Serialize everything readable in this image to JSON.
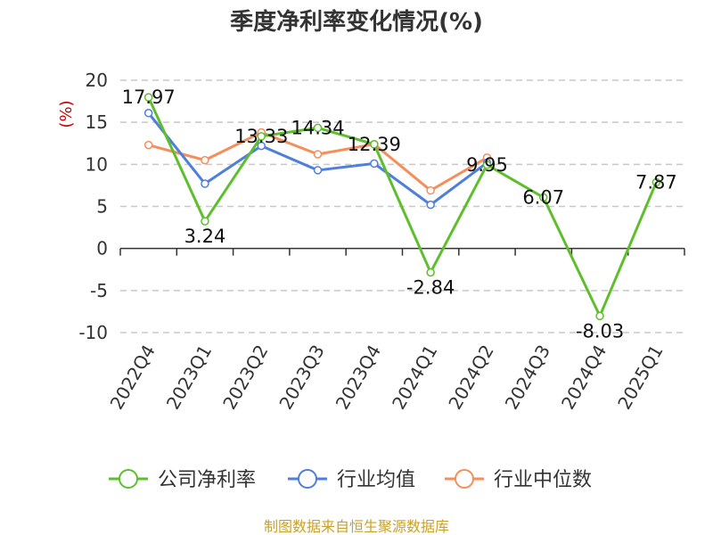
{
  "colors": {
    "company": "#5dbf2c",
    "industry_avg": "#4e7fdc",
    "industry_median": "#f58e5a",
    "axis_label": "#cc0000",
    "source": "#c9a227",
    "grid": "#c8c8c8",
    "axis": "#333333"
  },
  "chart_data": {
    "type": "line",
    "title": "季度净利率变化情况(%)",
    "ylabel": "(%)",
    "xlabel": "",
    "ylim": [
      -10,
      20
    ],
    "yticks": [
      -10,
      -5,
      0,
      5,
      10,
      15,
      20
    ],
    "grid": true,
    "legend_position": "bottom",
    "categories": [
      "2022Q4",
      "2023Q1",
      "2023Q2",
      "2023Q3",
      "2023Q4",
      "2024Q1",
      "2024Q2",
      "2024Q3",
      "2024Q4",
      "2025Q1"
    ],
    "series": [
      {
        "name": "公司净利率",
        "color_key": "company",
        "values": [
          17.97,
          3.24,
          13.33,
          14.34,
          12.39,
          -2.84,
          9.95,
          6.07,
          -8.03,
          7.87
        ],
        "labels": [
          "17.97",
          "3.24",
          "13.33",
          "14.34",
          "12.39",
          "-2.84",
          "9.95",
          "6.07",
          "-8.03",
          "7.87"
        ]
      },
      {
        "name": "行业均值",
        "color_key": "industry_avg",
        "values": [
          16.1,
          7.7,
          12.2,
          9.3,
          10.1,
          5.2,
          10.2,
          null,
          null,
          null
        ]
      },
      {
        "name": "行业中位数",
        "color_key": "industry_median",
        "values": [
          12.3,
          10.5,
          13.8,
          11.2,
          12.4,
          6.9,
          10.8,
          null,
          null,
          null
        ]
      }
    ]
  },
  "source_text": "制图数据来自恒生聚源数据库"
}
